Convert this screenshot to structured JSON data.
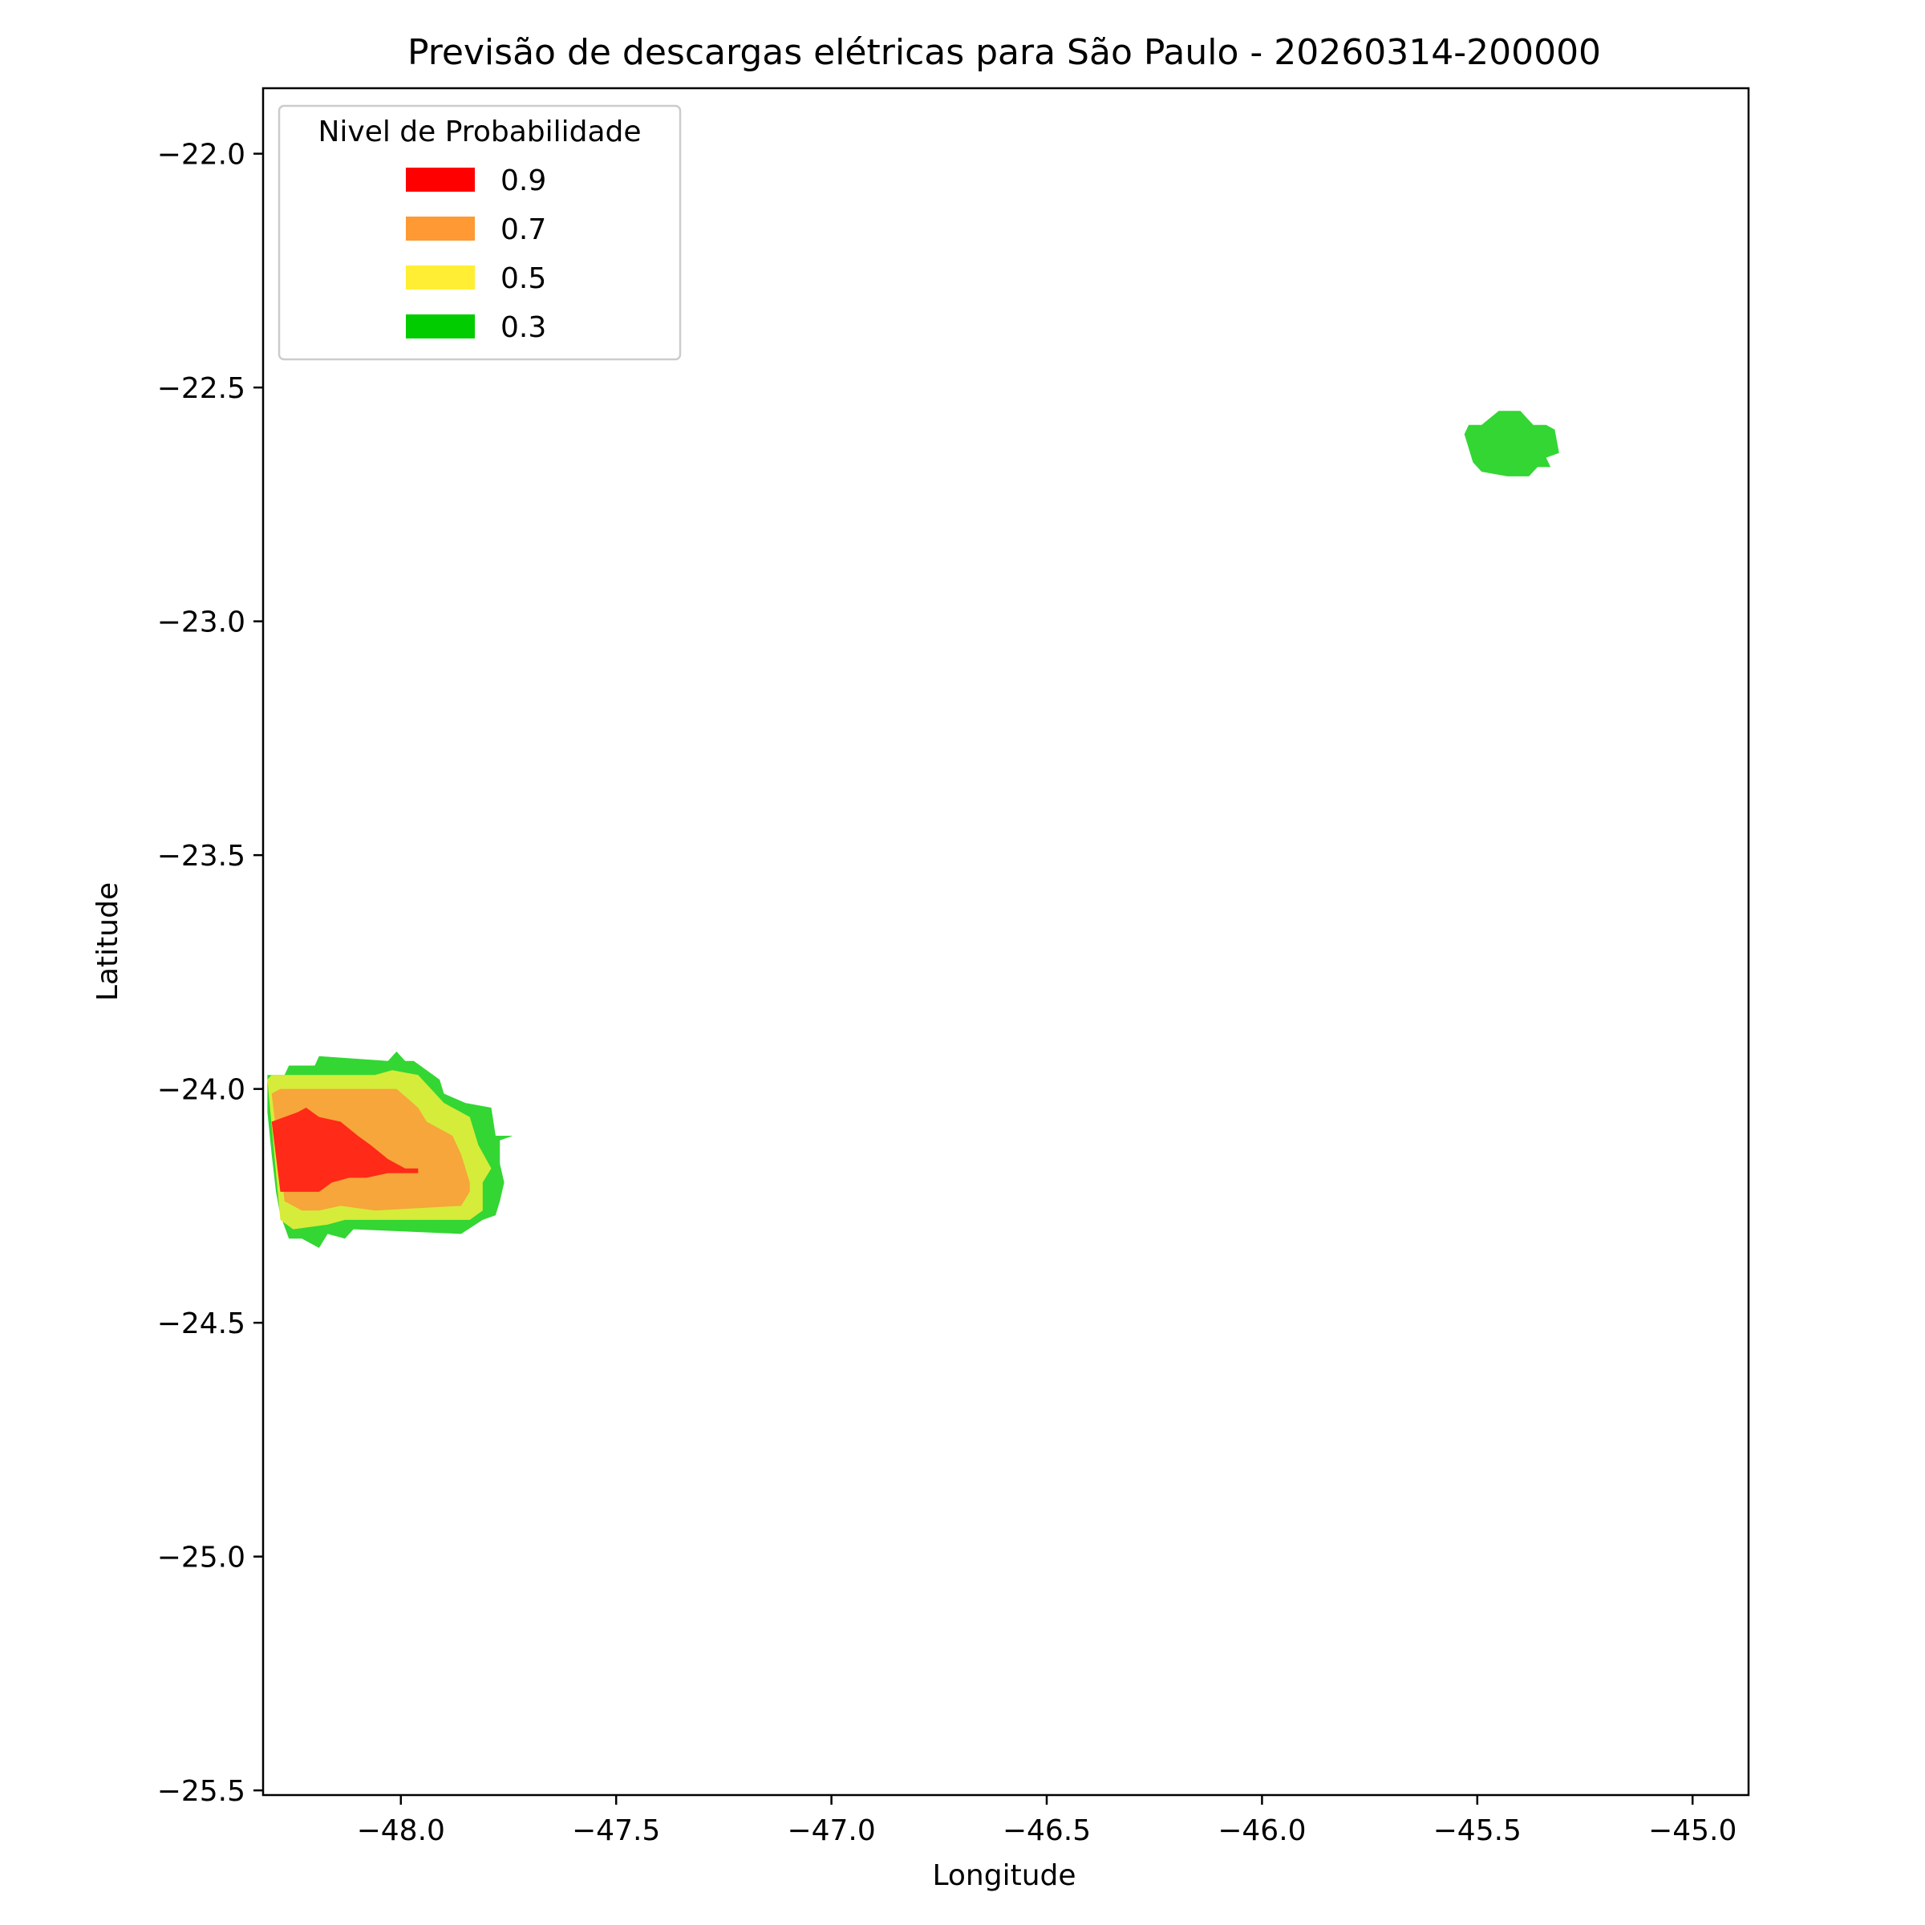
{
  "chart_data": {
    "type": "contour",
    "title": "Previsão de descargas elétricas para São Paulo - 20260314-200000",
    "xlabel": "Longitude",
    "ylabel": "Latitude",
    "xlim": [
      -48.32,
      -44.87
    ],
    "ylim": [
      -25.51,
      -21.86
    ],
    "xticks": [
      -48.0,
      -47.5,
      -47.0,
      -46.5,
      -46.0,
      -45.5,
      -45.0
    ],
    "xtick_labels": [
      "−48.0",
      "−47.5",
      "−47.0",
      "−46.5",
      "−46.0",
      "−45.5",
      "−45.0"
    ],
    "yticks": [
      -22.0,
      -22.5,
      -23.0,
      -23.5,
      -24.0,
      -24.5,
      -25.0,
      -25.5
    ],
    "ytick_labels": [
      "−22.0",
      "−22.5",
      "−23.0",
      "−23.5",
      "−24.0",
      "−24.5",
      "−25.0",
      "−25.5"
    ],
    "grid": false,
    "legend": {
      "title": "Nivel de Probabilidade",
      "placement": "top-left",
      "entries": [
        {
          "label": "0.9",
          "color": "#ff0000"
        },
        {
          "label": "0.7",
          "color": "#ff9933"
        },
        {
          "label": "0.5",
          "color": "#ffee33"
        },
        {
          "label": "0.3",
          "color": "#00cc00"
        }
      ]
    },
    "series": [
      {
        "level": 0.3,
        "fill": "#33d633",
        "polygons": [
          [
            [
              -48.31,
              -23.97
            ],
            [
              -48.27,
              -23.97
            ],
            [
              -48.26,
              -23.95
            ],
            [
              -48.2,
              -23.95
            ],
            [
              -48.19,
              -23.93
            ],
            [
              -48.03,
              -23.94
            ],
            [
              -48.01,
              -23.92
            ],
            [
              -47.99,
              -23.94
            ],
            [
              -47.97,
              -23.94
            ],
            [
              -47.91,
              -23.98
            ],
            [
              -47.9,
              -24.01
            ],
            [
              -47.85,
              -24.03
            ],
            [
              -47.79,
              -24.04
            ],
            [
              -47.78,
              -24.1
            ],
            [
              -47.74,
              -24.1
            ],
            [
              -47.77,
              -24.11
            ],
            [
              -47.77,
              -24.16
            ],
            [
              -47.76,
              -24.2
            ],
            [
              -47.77,
              -24.24
            ],
            [
              -47.78,
              -24.27
            ],
            [
              -47.81,
              -24.28
            ],
            [
              -47.86,
              -24.31
            ],
            [
              -48.11,
              -24.3
            ],
            [
              -48.13,
              -24.32
            ],
            [
              -48.17,
              -24.31
            ],
            [
              -48.19,
              -24.34
            ],
            [
              -48.23,
              -24.32
            ],
            [
              -48.26,
              -24.32
            ],
            [
              -48.28,
              -24.27
            ],
            [
              -48.29,
              -24.22
            ],
            [
              -48.3,
              -24.14
            ],
            [
              -48.31,
              -24.05
            ]
          ],
          [
            [
              -45.53,
              -22.6
            ],
            [
              -45.52,
              -22.63
            ],
            [
              -45.51,
              -22.66
            ],
            [
              -45.49,
              -22.68
            ],
            [
              -45.43,
              -22.69
            ],
            [
              -45.38,
              -22.69
            ],
            [
              -45.36,
              -22.67
            ],
            [
              -45.33,
              -22.67
            ],
            [
              -45.34,
              -22.65
            ],
            [
              -45.31,
              -22.64
            ],
            [
              -45.32,
              -22.59
            ],
            [
              -45.34,
              -22.58
            ],
            [
              -45.37,
              -22.58
            ],
            [
              -45.4,
              -22.55
            ],
            [
              -45.45,
              -22.55
            ],
            [
              -45.49,
              -22.58
            ],
            [
              -45.52,
              -22.58
            ]
          ]
        ]
      },
      {
        "level": 0.5,
        "fill": "#d6ec3a",
        "polygons": [
          [
            [
              -48.31,
              -23.98
            ],
            [
              -48.3,
              -23.97
            ],
            [
              -48.17,
              -23.97
            ],
            [
              -48.06,
              -23.97
            ],
            [
              -48.02,
              -23.96
            ],
            [
              -47.96,
              -23.97
            ],
            [
              -47.9,
              -24.03
            ],
            [
              -47.84,
              -24.06
            ],
            [
              -47.82,
              -24.12
            ],
            [
              -47.79,
              -24.17
            ],
            [
              -47.81,
              -24.2
            ],
            [
              -47.81,
              -24.26
            ],
            [
              -47.84,
              -24.28
            ],
            [
              -48.13,
              -24.28
            ],
            [
              -48.17,
              -24.29
            ],
            [
              -48.25,
              -24.3
            ],
            [
              -48.28,
              -24.28
            ]
          ]
        ]
      },
      {
        "level": 0.7,
        "fill": "#f6a63a",
        "polygons": [
          [
            [
              -48.3,
              -24.01
            ],
            [
              -48.28,
              -24.0
            ],
            [
              -48.18,
              -24.0
            ],
            [
              -48.06,
              -24.0
            ],
            [
              -48.01,
              -24.0
            ],
            [
              -47.96,
              -24.04
            ],
            [
              -47.94,
              -24.07
            ],
            [
              -47.88,
              -24.1
            ],
            [
              -47.86,
              -24.14
            ],
            [
              -47.84,
              -24.2
            ],
            [
              -47.84,
              -24.22
            ],
            [
              -47.86,
              -24.25
            ],
            [
              -48.06,
              -24.26
            ],
            [
              -48.14,
              -24.25
            ],
            [
              -48.19,
              -24.26
            ],
            [
              -48.23,
              -24.26
            ],
            [
              -48.27,
              -24.24
            ]
          ]
        ]
      },
      {
        "level": 0.9,
        "fill": "#ff2a18",
        "polygons": [
          [
            [
              -48.3,
              -24.07
            ],
            [
              -48.27,
              -24.06
            ],
            [
              -48.24,
              -24.05
            ],
            [
              -48.22,
              -24.04
            ],
            [
              -48.19,
              -24.06
            ],
            [
              -48.14,
              -24.07
            ],
            [
              -48.1,
              -24.1
            ],
            [
              -48.07,
              -24.12
            ],
            [
              -48.03,
              -24.15
            ],
            [
              -47.99,
              -24.17
            ],
            [
              -47.96,
              -24.17
            ],
            [
              -47.96,
              -24.18
            ],
            [
              -47.99,
              -24.18
            ],
            [
              -48.03,
              -24.18
            ],
            [
              -48.08,
              -24.19
            ],
            [
              -48.12,
              -24.19
            ],
            [
              -48.16,
              -24.2
            ],
            [
              -48.19,
              -24.22
            ],
            [
              -48.24,
              -24.22
            ],
            [
              -48.28,
              -24.22
            ]
          ]
        ]
      }
    ]
  }
}
